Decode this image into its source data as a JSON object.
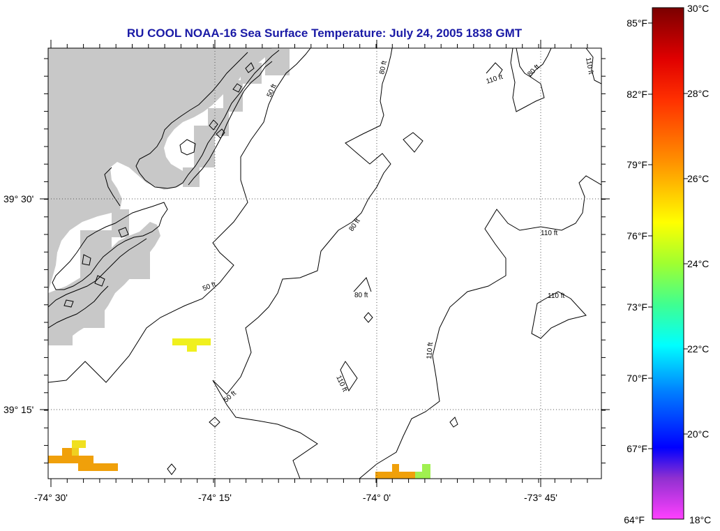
{
  "title": "RU COOL  NOAA-16  Sea Surface Temperature:  July 24, 2005 1838 GMT",
  "map": {
    "x_ticks": [
      "-74° 30'",
      "-74° 15'",
      "-74° 0'",
      "-73° 45'"
    ],
    "y_ticks": [
      "39° 30'",
      "39° 15'"
    ],
    "land_color": "#c8c8c8",
    "grid": "dotted"
  },
  "contours": {
    "labels": [
      "50 ft",
      "50 ft",
      "50 ft",
      "80 ft",
      "80 ft",
      "80 ft",
      "80 ft",
      "110 ft",
      "110 ft",
      "110 ft",
      "110 ft",
      "110 ft",
      "110 ft"
    ]
  },
  "sst_patches": [
    {
      "color": "#f0f01e",
      "label": "about 25.5°C"
    },
    {
      "color": "#f0a00a",
      "label": "about 27°C"
    },
    {
      "color": "#a0f050",
      "label": "about 24.5°C"
    }
  ],
  "colorbar": {
    "f_labels": [
      "85°F",
      "82°F",
      "79°F",
      "76°F",
      "73°F",
      "70°F",
      "67°F",
      "64°F"
    ],
    "c_labels": [
      "30°C",
      "28°C",
      "26°C",
      "24°C",
      "22°C",
      "20°C",
      "18°C"
    ],
    "colors": [
      "#800000",
      "#ff0000",
      "#ff8000",
      "#ffff00",
      "#80ff40",
      "#00ffff",
      "#0000ff",
      "#8020c0",
      "#ff40ff"
    ]
  }
}
